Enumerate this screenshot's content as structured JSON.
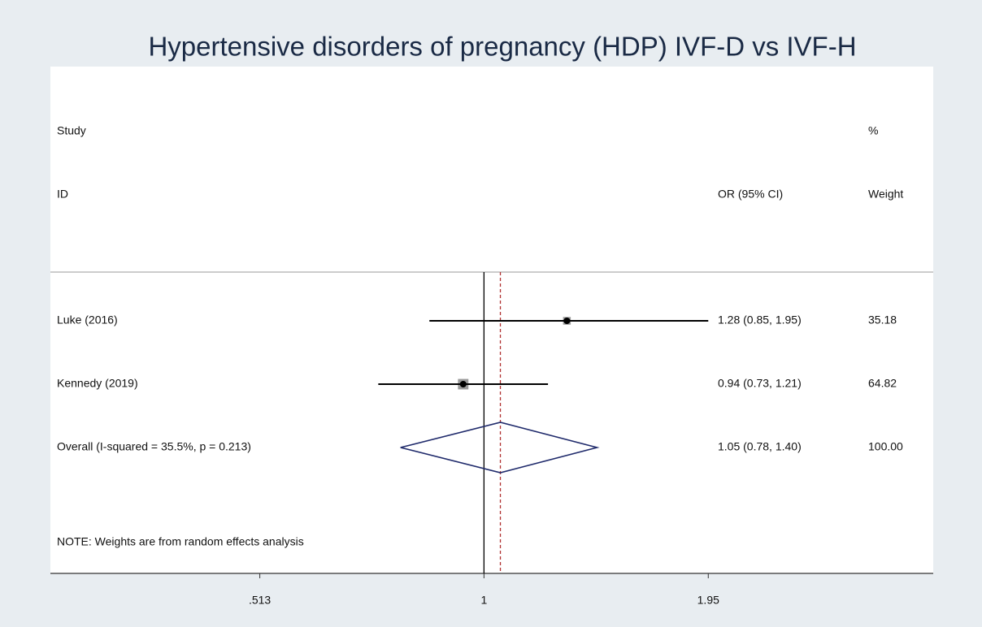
{
  "chart_data": {
    "type": "forest",
    "title": "Hypertensive disorders of pregnancy (HDP) IVF-D vs IVF-H",
    "headers": {
      "study": "Study",
      "id": "ID",
      "ci": "OR (95% CI)",
      "pct": "%",
      "weight": "Weight"
    },
    "studies": [
      {
        "name": "Luke (2016)",
        "or": 1.28,
        "lower": 0.85,
        "upper": 1.95,
        "ci_label": "1.28 (0.85, 1.95)",
        "weight": 35.18
      },
      {
        "name": "Kennedy (2019)",
        "or": 0.94,
        "lower": 0.73,
        "upper": 1.21,
        "ci_label": "0.94 (0.73, 1.21)",
        "weight": 64.82
      }
    ],
    "overall": {
      "name": "Overall  (I-squared = 35.5%, p = 0.213)",
      "or": 1.05,
      "lower": 0.78,
      "upper": 1.4,
      "ci_label": "1.05 (0.78, 1.40)",
      "weight": 100,
      "weight_label": "100.00"
    },
    "note": "NOTE: Weights are from random effects analysis",
    "xlog": true,
    "xlim": [
      0.275,
      3.81
    ],
    "xticks": [
      {
        "value": 0.513,
        "label": ".513"
      },
      1,
      1.95
    ],
    "reference_line": 1,
    "colors": {
      "line": "#000000",
      "box": "#9a9a9a",
      "diamond": "#1f2a6b",
      "overall_line": "#b03030"
    }
  }
}
